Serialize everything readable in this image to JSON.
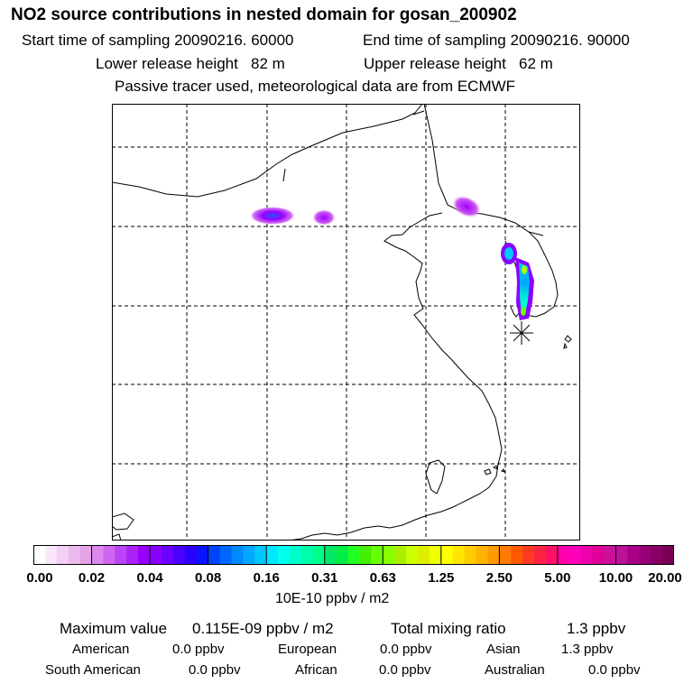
{
  "header": {
    "title": "NO2 source contributions in nested domain for gosan_200902",
    "start_label": "Start time of sampling",
    "start_value": "20090216. 60000",
    "end_label": "End time of sampling",
    "end_value": "20090216. 90000",
    "lower_label": "Lower release height",
    "lower_value": "82 m",
    "upper_label": "Upper release height",
    "upper_value": "62 m",
    "passive_note": "Passive tracer used, meteorological data are from ECMWF"
  },
  "chart_data": {
    "type": "heatmap",
    "title": "NO2 source contributions in nested domain for gosan_200902",
    "domain": "East Asia nested domain",
    "grid": true,
    "receptor": "gosan",
    "receptor_marker": "star",
    "colorbar": {
      "units": "10E-10 ppbv / m2",
      "tick_labels": [
        "0.00",
        "0.02",
        "0.04",
        "0.08",
        "0.16",
        "0.31",
        "0.63",
        "1.25",
        "2.50",
        "5.00",
        "10.00",
        "20.00"
      ],
      "colors": [
        [
          "#ffffff",
          "#fae8fa",
          "#f4d0f4",
          "#eebaee",
          "#e6a2e6"
        ],
        [
          "#dd88ee",
          "#d066f0",
          "#bb44f4",
          "#aa22f8",
          "#9900ff"
        ],
        [
          "#8a00ff",
          "#6a00ff",
          "#4a00ff",
          "#2a00ff",
          "#0a14ff"
        ],
        [
          "#0044ff",
          "#0066ff",
          "#0088ff",
          "#00a8ff",
          "#00c8ff"
        ],
        [
          "#00e8ff",
          "#00ffee",
          "#00ffcc",
          "#00ffaa",
          "#00ff88"
        ],
        [
          "#00e866",
          "#00ee44",
          "#22ff22",
          "#44ee00",
          "#66ff00"
        ],
        [
          "#88ff00",
          "#aaee00",
          "#ccff00",
          "#ddee00",
          "#eeff00"
        ],
        [
          "#ffff00",
          "#ffe600",
          "#ffcc00",
          "#ffb300",
          "#ff9900"
        ],
        [
          "#ff7a00",
          "#ff5a00",
          "#ff3a22",
          "#ff2244",
          "#ff1166"
        ],
        [
          "#ff00aa",
          "#ff00bb",
          "#ee00aa",
          "#dd0099",
          "#cc1199"
        ],
        [
          "#bb1199",
          "#aa0088",
          "#990077",
          "#880066",
          "#770055"
        ]
      ]
    }
  },
  "summary": {
    "max_label": "Maximum value",
    "max_value": "0.115E-09 ppbv / m2",
    "total_label": "Total mixing ratio",
    "total_value": "1.3 ppbv",
    "regions": [
      {
        "name": "American",
        "value": "0.0 ppbv"
      },
      {
        "name": "European",
        "value": "0.0 ppbv"
      },
      {
        "name": "Asian",
        "value": "1.3 ppbv"
      },
      {
        "name": "South American",
        "value": "0.0 ppbv"
      },
      {
        "name": "African",
        "value": "0.0 ppbv"
      },
      {
        "name": "Australian",
        "value": "0.0 ppbv"
      }
    ]
  }
}
